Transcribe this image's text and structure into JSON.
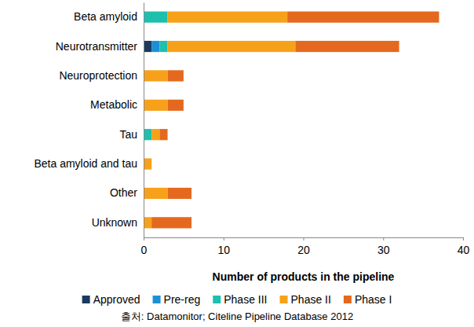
{
  "chart_data": {
    "type": "bar",
    "orientation": "horizontal",
    "stacked": true,
    "x_label": "Number of products in the pipeline",
    "source": "출처: Datamonitor; Citeline Pipeline Database 2012",
    "categories": [
      "Beta amyloid",
      "Neurotransmitter",
      "Neuroprotection",
      "Metabolic",
      "Tau",
      "Beta amyloid and tau",
      "Other",
      "Unknown"
    ],
    "series": [
      {
        "name": "Approved",
        "color": "#1b3a5c",
        "values": [
          0,
          1,
          0,
          0,
          0,
          0,
          0,
          0
        ]
      },
      {
        "name": "Pre-reg",
        "color": "#1e8fd5",
        "values": [
          0,
          1,
          0,
          0,
          0,
          0,
          0,
          0
        ]
      },
      {
        "name": "Phase III",
        "color": "#1fbfae",
        "values": [
          3,
          1,
          0,
          0,
          1,
          0,
          0,
          0
        ]
      },
      {
        "name": "Phase II",
        "color": "#f7a11a",
        "values": [
          15,
          16,
          3,
          3,
          1,
          1,
          3,
          1
        ]
      },
      {
        "name": "Phase I",
        "color": "#e4691e",
        "values": [
          19,
          13,
          2,
          2,
          1,
          0,
          3,
          5
        ]
      }
    ],
    "xlim": [
      0,
      40
    ],
    "xticks": [
      0,
      10,
      20,
      30,
      40
    ],
    "legend": "bottom",
    "grid": false
  }
}
